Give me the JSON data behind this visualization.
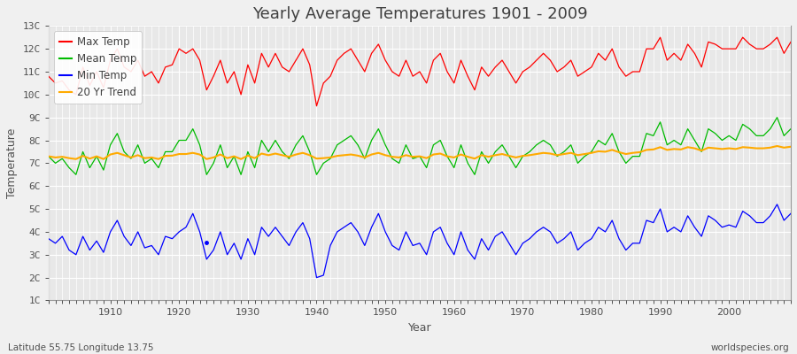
{
  "title": "Yearly Average Temperatures 1901 - 2009",
  "xlabel": "Year",
  "ylabel": "Temperature",
  "subtitle_left": "Latitude 55.75 Longitude 13.75",
  "subtitle_right": "worldspecies.org",
  "years": [
    1901,
    1902,
    1903,
    1904,
    1905,
    1906,
    1907,
    1908,
    1909,
    1910,
    1911,
    1912,
    1913,
    1914,
    1915,
    1916,
    1917,
    1918,
    1919,
    1920,
    1921,
    1922,
    1923,
    1924,
    1925,
    1926,
    1927,
    1928,
    1929,
    1930,
    1931,
    1932,
    1933,
    1934,
    1935,
    1936,
    1937,
    1938,
    1939,
    1940,
    1941,
    1942,
    1943,
    1944,
    1945,
    1946,
    1947,
    1948,
    1949,
    1950,
    1951,
    1952,
    1953,
    1954,
    1955,
    1956,
    1957,
    1958,
    1959,
    1960,
    1961,
    1962,
    1963,
    1964,
    1965,
    1966,
    1967,
    1968,
    1969,
    1970,
    1971,
    1972,
    1973,
    1974,
    1975,
    1976,
    1977,
    1978,
    1979,
    1980,
    1981,
    1982,
    1983,
    1984,
    1985,
    1986,
    1987,
    1988,
    1989,
    1990,
    1991,
    1992,
    1993,
    1994,
    1995,
    1996,
    1997,
    1998,
    1999,
    2000,
    2001,
    2002,
    2003,
    2004,
    2005,
    2006,
    2007,
    2008,
    2009
  ],
  "max_temp": [
    10.8,
    10.5,
    10.6,
    10.2,
    10.0,
    11.2,
    10.4,
    11.0,
    10.3,
    11.5,
    12.0,
    11.2,
    11.0,
    11.5,
    10.8,
    11.0,
    10.5,
    11.2,
    11.3,
    12.0,
    11.8,
    12.0,
    11.5,
    10.2,
    10.8,
    11.5,
    10.5,
    11.0,
    10.0,
    11.3,
    10.5,
    11.8,
    11.2,
    11.8,
    11.2,
    11.0,
    11.5,
    12.0,
    11.3,
    9.5,
    10.5,
    10.8,
    11.5,
    11.8,
    12.0,
    11.5,
    11.0,
    11.8,
    12.2,
    11.5,
    11.0,
    10.8,
    11.5,
    10.8,
    11.0,
    10.5,
    11.5,
    11.8,
    11.0,
    10.5,
    11.5,
    10.8,
    10.2,
    11.2,
    10.8,
    11.2,
    11.5,
    11.0,
    10.5,
    11.0,
    11.2,
    11.5,
    11.8,
    11.5,
    11.0,
    11.2,
    11.5,
    10.8,
    11.0,
    11.2,
    11.8,
    11.5,
    12.0,
    11.2,
    10.8,
    11.0,
    11.0,
    12.0,
    12.0,
    12.5,
    11.5,
    11.8,
    11.5,
    12.2,
    11.8,
    11.2,
    12.3,
    12.2,
    12.0,
    12.0,
    12.0,
    12.5,
    12.2,
    12.0,
    12.0,
    12.2,
    12.5,
    11.8,
    12.3
  ],
  "mean_temp": [
    7.3,
    7.0,
    7.2,
    6.8,
    6.5,
    7.5,
    6.8,
    7.3,
    6.7,
    7.8,
    8.3,
    7.5,
    7.2,
    7.8,
    7.0,
    7.2,
    6.8,
    7.5,
    7.5,
    8.0,
    8.0,
    8.5,
    7.8,
    6.5,
    7.0,
    7.8,
    6.8,
    7.3,
    6.5,
    7.5,
    6.8,
    8.0,
    7.5,
    8.0,
    7.5,
    7.2,
    7.8,
    8.2,
    7.5,
    6.5,
    7.0,
    7.2,
    7.8,
    8.0,
    8.2,
    7.8,
    7.2,
    8.0,
    8.5,
    7.8,
    7.2,
    7.0,
    7.8,
    7.2,
    7.3,
    6.8,
    7.8,
    8.0,
    7.3,
    6.8,
    7.8,
    7.0,
    6.5,
    7.5,
    7.0,
    7.5,
    7.8,
    7.3,
    6.8,
    7.3,
    7.5,
    7.8,
    8.0,
    7.8,
    7.3,
    7.5,
    7.8,
    7.0,
    7.3,
    7.5,
    8.0,
    7.8,
    8.3,
    7.5,
    7.0,
    7.3,
    7.3,
    8.3,
    8.2,
    8.8,
    7.8,
    8.0,
    7.8,
    8.5,
    8.0,
    7.5,
    8.5,
    8.3,
    8.0,
    8.2,
    8.0,
    8.7,
    8.5,
    8.2,
    8.2,
    8.5,
    9.0,
    8.2,
    8.5
  ],
  "min_temp": [
    3.7,
    3.5,
    3.8,
    3.2,
    3.0,
    3.8,
    3.2,
    3.6,
    3.1,
    4.0,
    4.5,
    3.8,
    3.4,
    4.0,
    3.3,
    3.4,
    3.0,
    3.8,
    3.7,
    4.0,
    4.2,
    4.8,
    4.0,
    2.8,
    3.2,
    4.0,
    3.0,
    3.5,
    2.8,
    3.7,
    3.0,
    4.2,
    3.8,
    4.2,
    3.8,
    3.4,
    4.0,
    4.4,
    3.7,
    2.0,
    2.1,
    3.4,
    4.0,
    4.2,
    4.4,
    4.0,
    3.4,
    4.2,
    4.8,
    4.0,
    3.4,
    3.2,
    4.0,
    3.4,
    3.5,
    3.0,
    4.0,
    4.2,
    3.5,
    3.0,
    4.0,
    3.2,
    2.8,
    3.7,
    3.2,
    3.8,
    4.0,
    3.5,
    3.0,
    3.5,
    3.7,
    4.0,
    4.2,
    4.0,
    3.5,
    3.7,
    4.0,
    3.2,
    3.5,
    3.7,
    4.2,
    4.0,
    4.5,
    3.7,
    3.2,
    3.5,
    3.5,
    4.5,
    4.4,
    5.0,
    4.0,
    4.2,
    4.0,
    4.7,
    4.2,
    3.8,
    4.7,
    4.5,
    4.2,
    4.3,
    4.2,
    4.9,
    4.7,
    4.4,
    4.4,
    4.7,
    5.2,
    4.5,
    4.8
  ],
  "trend_20yr": [
    7.3,
    7.25,
    7.28,
    7.22,
    7.18,
    7.32,
    7.2,
    7.3,
    7.18,
    7.38,
    7.45,
    7.35,
    7.25,
    7.35,
    7.22,
    7.25,
    7.18,
    7.32,
    7.33,
    7.4,
    7.4,
    7.45,
    7.38,
    7.18,
    7.25,
    7.38,
    7.22,
    7.3,
    7.18,
    7.33,
    7.22,
    7.42,
    7.35,
    7.42,
    7.35,
    7.28,
    7.38,
    7.45,
    7.35,
    7.2,
    7.22,
    7.25,
    7.32,
    7.35,
    7.38,
    7.33,
    7.25,
    7.38,
    7.45,
    7.35,
    7.28,
    7.25,
    7.35,
    7.28,
    7.3,
    7.22,
    7.38,
    7.42,
    7.3,
    7.25,
    7.38,
    7.28,
    7.2,
    7.35,
    7.28,
    7.35,
    7.4,
    7.32,
    7.25,
    7.32,
    7.35,
    7.4,
    7.45,
    7.42,
    7.35,
    7.4,
    7.45,
    7.35,
    7.4,
    7.45,
    7.52,
    7.5,
    7.58,
    7.48,
    7.4,
    7.45,
    7.48,
    7.58,
    7.6,
    7.7,
    7.58,
    7.62,
    7.6,
    7.7,
    7.65,
    7.55,
    7.68,
    7.65,
    7.62,
    7.65,
    7.62,
    7.7,
    7.68,
    7.65,
    7.65,
    7.68,
    7.75,
    7.68,
    7.72
  ],
  "colors": {
    "max_temp": "#ff0000",
    "mean_temp": "#00bb00",
    "min_temp": "#0000ff",
    "trend": "#ffaa00",
    "background": "#f0f0f0",
    "plot_bg": "#e8e8e8",
    "grid": "#ffffff",
    "text": "#404040",
    "axis_text": "#505050"
  },
  "ylim": [
    1,
    13
  ],
  "yticks": [
    1,
    2,
    3,
    4,
    5,
    6,
    7,
    8,
    9,
    10,
    11,
    12,
    13
  ],
  "ytick_labels": [
    "1C",
    "2C",
    "3C",
    "4C",
    "5C",
    "6C",
    "7C",
    "8C",
    "9C",
    "10C",
    "11C",
    "12C",
    "13C"
  ],
  "xlim": [
    1901,
    2009
  ],
  "xticks": [
    1910,
    1920,
    1930,
    1940,
    1950,
    1960,
    1970,
    1980,
    1990,
    2000
  ],
  "xtick_labels": [
    "1910",
    "1920",
    "1930",
    "1940",
    "1950",
    "1960",
    "1970",
    "1980",
    "1990",
    "2000"
  ],
  "legend_items": [
    "Max Temp",
    "Mean Temp",
    "Min Temp",
    "20 Yr Trend"
  ],
  "legend_colors": [
    "#ff0000",
    "#00bb00",
    "#0000ff",
    "#ffaa00"
  ],
  "linewidth": 0.9,
  "title_fontsize": 13,
  "label_fontsize": 9,
  "tick_fontsize": 8
}
